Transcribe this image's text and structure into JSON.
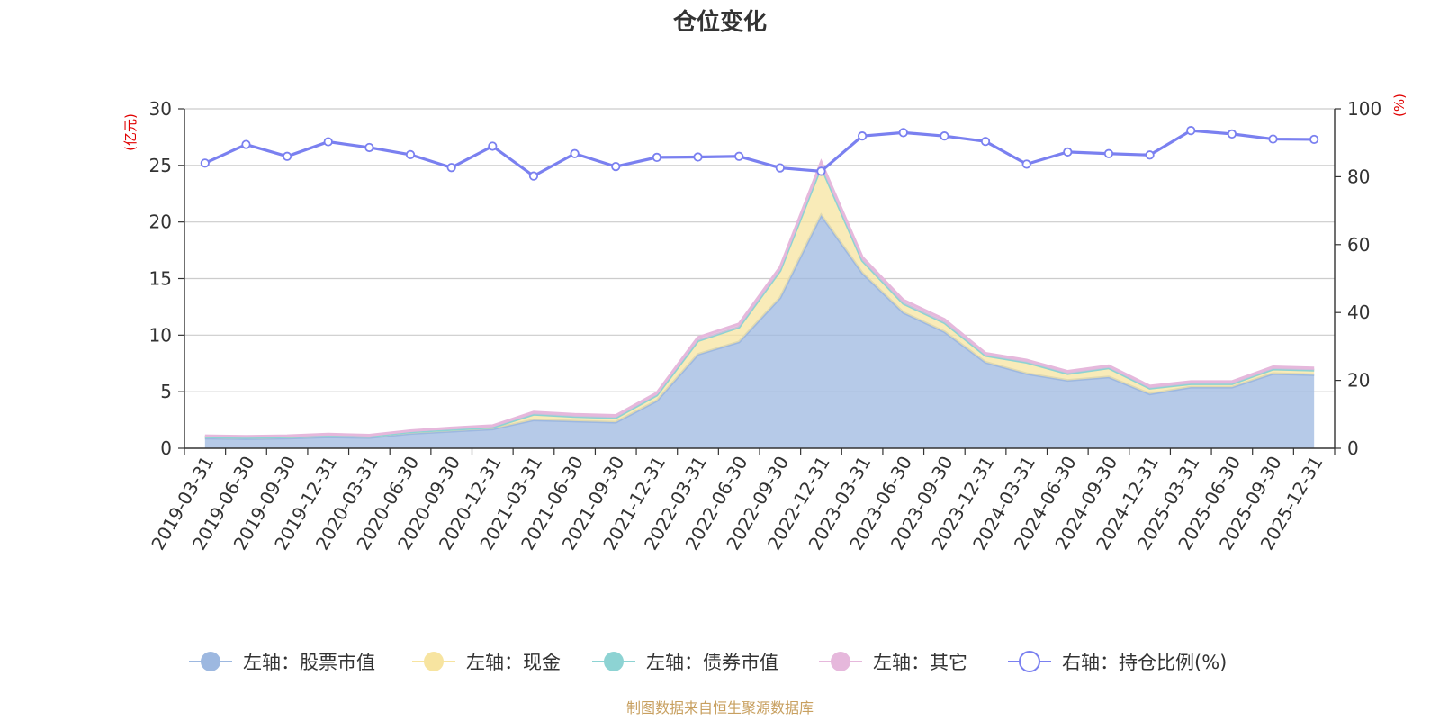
{
  "chart_data": {
    "type": "area",
    "title": "仓位变化",
    "left_axis_name": "(亿元)",
    "right_axis_name": "(%)",
    "left_ylim": [
      0,
      30
    ],
    "left_ticks": [
      "0",
      "5",
      "10",
      "15",
      "20",
      "25",
      "30"
    ],
    "right_ylim": [
      0,
      100
    ],
    "right_ticks": [
      "0",
      "20",
      "40",
      "60",
      "80",
      "100"
    ],
    "categories": [
      "2019-03-31",
      "2019-06-30",
      "2019-09-30",
      "2019-12-31",
      "2020-03-31",
      "2020-06-30",
      "2020-09-30",
      "2020-12-31",
      "2021-03-31",
      "2021-06-30",
      "2021-09-30",
      "2021-12-31",
      "2022-03-31",
      "2022-06-30",
      "2022-09-30",
      "2022-12-31",
      "2023-03-31",
      "2023-06-30",
      "2023-09-30",
      "2023-12-31",
      "2024-03-31",
      "2024-06-30",
      "2024-09-30",
      "2024-12-31",
      "2025-03-31",
      "2025-06-30",
      "2025-09-30",
      "2025-12-31"
    ],
    "series": [
      {
        "name": "左轴：股票市值",
        "axis": "left",
        "kind": "stacked-area",
        "color": "#9db8e0",
        "values": [
          0.9,
          0.85,
          0.9,
          1.0,
          0.95,
          1.3,
          1.5,
          1.7,
          2.5,
          2.4,
          2.3,
          4.2,
          8.3,
          9.4,
          13.3,
          20.6,
          15.5,
          12.0,
          10.3,
          7.6,
          6.6,
          6.0,
          6.3,
          4.8,
          5.4,
          5.4,
          6.6,
          6.5
        ]
      },
      {
        "name": "左轴：现金",
        "axis": "left",
        "kind": "stacked-area",
        "color": "#f7e4a0",
        "values": [
          0.1,
          0.1,
          0.1,
          0.1,
          0.1,
          0.15,
          0.15,
          0.15,
          0.5,
          0.4,
          0.4,
          0.5,
          1.2,
          1.3,
          2.4,
          4.3,
          1.1,
          0.8,
          0.8,
          0.6,
          1.0,
          0.6,
          0.8,
          0.5,
          0.3,
          0.3,
          0.4,
          0.4
        ]
      },
      {
        "name": "左轴：债券市值",
        "axis": "left",
        "kind": "stacked-area",
        "color": "#8dd3d3",
        "values": [
          0,
          0,
          0,
          0,
          0,
          0,
          0,
          0,
          0,
          0,
          0,
          0,
          0,
          0,
          0,
          0,
          0,
          0,
          0,
          0,
          0,
          0,
          0,
          0,
          0,
          0,
          0,
          0
        ]
      },
      {
        "name": "左轴：其它",
        "axis": "left",
        "kind": "stacked-area",
        "color": "#e6b8dc",
        "values": [
          0.1,
          0.1,
          0.1,
          0.15,
          0.1,
          0.1,
          0.15,
          0.15,
          0.2,
          0.2,
          0.2,
          0.2,
          0.3,
          0.3,
          0.3,
          0.4,
          0.3,
          0.3,
          0.3,
          0.2,
          0.2,
          0.2,
          0.2,
          0.2,
          0.2,
          0.2,
          0.2,
          0.2
        ]
      },
      {
        "name": "右轴：持仓比例(%)",
        "axis": "right",
        "kind": "line",
        "color": "#7a80f0",
        "values": [
          84,
          89.5,
          86,
          90.3,
          88.6,
          86.5,
          82.7,
          89,
          80.2,
          86.8,
          83,
          85.7,
          85.8,
          86,
          82.6,
          81.6,
          92,
          93,
          92,
          90.4,
          83.7,
          87.3,
          86.8,
          86.4,
          93.6,
          92.6,
          91.1,
          91
        ]
      }
    ],
    "legend_position": "bottom",
    "grid": true
  },
  "source_text": "制图数据来自恒生聚源数据库"
}
